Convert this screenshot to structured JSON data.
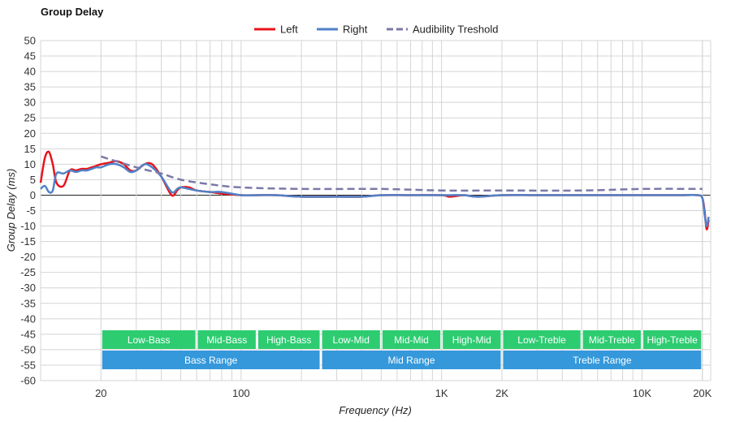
{
  "chart_data": {
    "type": "line",
    "title": "Group Delay",
    "xlabel": "Frequency (Hz)",
    "ylabel": "Group Delay (ms)",
    "x_scale": "log",
    "xlim": [
      10,
      22000
    ],
    "ylim": [
      -60,
      50
    ],
    "y_ticks": [
      50,
      45,
      40,
      35,
      30,
      25,
      20,
      15,
      10,
      5,
      0,
      -5,
      -10,
      -15,
      -20,
      -25,
      -30,
      -35,
      -40,
      -45,
      -50,
      -55,
      -60
    ],
    "x_tick_labels": [
      {
        "value": 20,
        "label": "20"
      },
      {
        "value": 100,
        "label": "100"
      },
      {
        "value": 1000,
        "label": "1K"
      },
      {
        "value": 2000,
        "label": "2K"
      },
      {
        "value": 10000,
        "label": "10K"
      },
      {
        "value": 20000,
        "label": "20K"
      }
    ],
    "grid": true,
    "legend_position": "top-center",
    "series": [
      {
        "name": "Left",
        "color": "#e8141b",
        "style": "solid",
        "x": [
          10,
          10.5,
          11,
          11.5,
          12,
          13,
          14,
          15,
          16,
          17,
          18,
          19,
          20,
          22,
          24,
          26,
          28,
          30,
          33,
          36,
          40,
          45,
          48,
          50,
          55,
          60,
          70,
          80,
          100,
          120,
          150,
          200,
          300,
          400,
          500,
          700,
          1000,
          1100,
          1300,
          1500,
          2000,
          3000,
          5000,
          7000,
          10000,
          15000,
          19000,
          20000,
          20500,
          21000,
          21500
        ],
        "y": [
          4,
          12,
          14,
          10,
          4,
          3,
          8,
          8,
          8.5,
          8.5,
          9,
          9.5,
          10,
          10.5,
          11,
          10,
          8,
          8,
          10,
          10,
          6,
          0,
          1.5,
          2.5,
          2.5,
          1.5,
          1,
          0.5,
          0,
          0,
          0,
          -0.5,
          -0.5,
          -0.5,
          0,
          0,
          0,
          -0.5,
          0,
          -0.5,
          0,
          0,
          0,
          0,
          0,
          0,
          0,
          -1,
          -5,
          -11,
          -8
        ]
      },
      {
        "name": "Right",
        "color": "#4f81c7",
        "style": "solid",
        "x": [
          10,
          10.5,
          11,
          11.5,
          12,
          13,
          14,
          15,
          16,
          17,
          18,
          19,
          20,
          22,
          24,
          26,
          28,
          30,
          33,
          36,
          40,
          45,
          48,
          50,
          55,
          60,
          70,
          80,
          100,
          120,
          150,
          200,
          300,
          400,
          500,
          700,
          1000,
          1100,
          1300,
          1500,
          2000,
          3000,
          5000,
          7000,
          10000,
          15000,
          19000,
          20000,
          20500,
          21000,
          21500
        ],
        "y": [
          2,
          3,
          1,
          1.5,
          7,
          7,
          8,
          7.5,
          8,
          8,
          8.5,
          9,
          9,
          10,
          10,
          9,
          7.5,
          8,
          10,
          9,
          6,
          1,
          2,
          2.5,
          2,
          1.5,
          1,
          1,
          0,
          0,
          0,
          -0.5,
          -0.5,
          -0.5,
          0,
          0,
          0,
          0,
          0,
          -0.5,
          0,
          0,
          0,
          0,
          0,
          0,
          0,
          -1,
          -6,
          -10,
          -7
        ]
      },
      {
        "name": "Audibility Treshold",
        "color": "#7b79a9",
        "style": "dashed",
        "x": [
          20,
          30,
          40,
          50,
          70,
          100,
          200,
          500,
          1000,
          2000,
          5000,
          10000,
          20000
        ],
        "y": [
          12.5,
          9,
          7,
          5,
          3.5,
          2.5,
          2,
          2,
          1.5,
          1.5,
          1.5,
          2,
          2
        ]
      }
    ],
    "bands": [
      {
        "row": 1,
        "label": "Low-Bass",
        "from": 20,
        "to": 60,
        "color": "#2ecc71"
      },
      {
        "row": 1,
        "label": "Mid-Bass",
        "from": 60,
        "to": 120,
        "color": "#2ecc71"
      },
      {
        "row": 1,
        "label": "High-Bass",
        "from": 120,
        "to": 250,
        "color": "#2ecc71"
      },
      {
        "row": 1,
        "label": "Low-Mid",
        "from": 250,
        "to": 500,
        "color": "#2ecc71"
      },
      {
        "row": 1,
        "label": "Mid-Mid",
        "from": 500,
        "to": 1000,
        "color": "#2ecc71"
      },
      {
        "row": 1,
        "label": "High-Mid",
        "from": 1000,
        "to": 2000,
        "color": "#2ecc71"
      },
      {
        "row": 1,
        "label": "Low-Treble",
        "from": 2000,
        "to": 5000,
        "color": "#2ecc71"
      },
      {
        "row": 1,
        "label": "Mid-Treble",
        "from": 5000,
        "to": 10000,
        "color": "#2ecc71"
      },
      {
        "row": 1,
        "label": "High-Treble",
        "from": 10000,
        "to": 20000,
        "color": "#2ecc71"
      },
      {
        "row": 2,
        "label": "Bass Range",
        "from": 20,
        "to": 250,
        "color": "#3498db"
      },
      {
        "row": 2,
        "label": "Mid Range",
        "from": 250,
        "to": 2000,
        "color": "#3498db"
      },
      {
        "row": 2,
        "label": "Treble Range",
        "from": 2000,
        "to": 20000,
        "color": "#3498db"
      }
    ]
  }
}
